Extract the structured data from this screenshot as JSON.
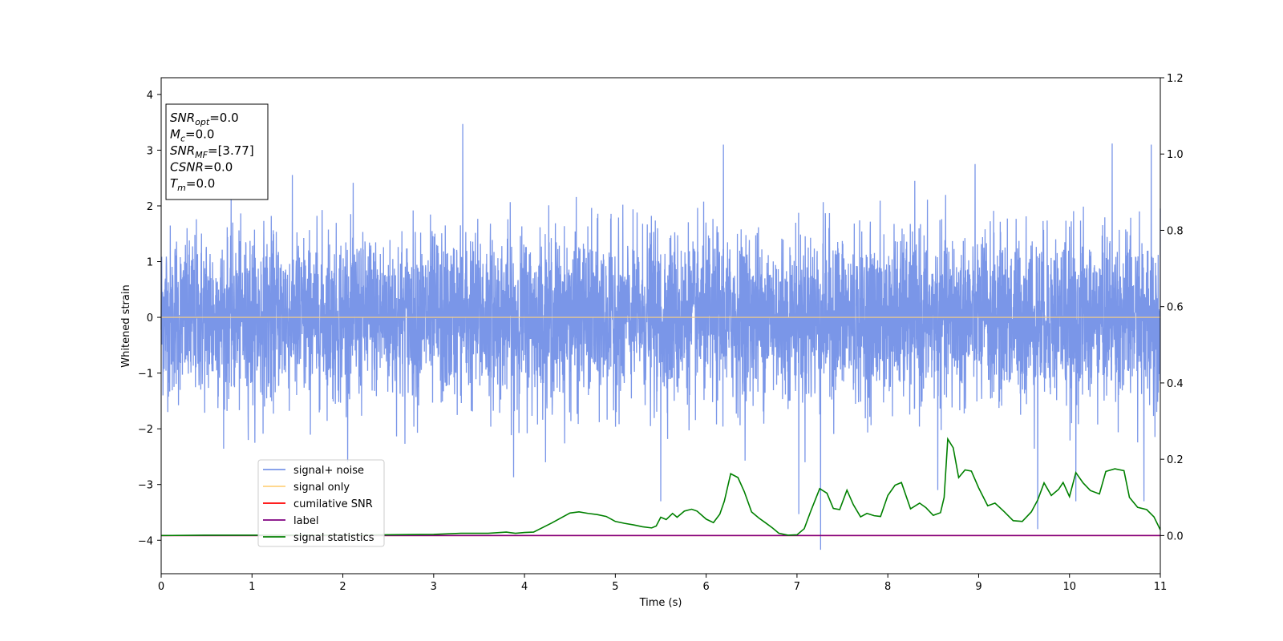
{
  "chart_data": {
    "type": "line",
    "xlabel": "Time (s)",
    "ylabel": "Whitened strain",
    "xlim": [
      0,
      11
    ],
    "ylim_left": [
      -4.6,
      4.3
    ],
    "ylim_right": [
      -0.1,
      1.2
    ],
    "xticks": [
      "0",
      "1",
      "2",
      "3",
      "4",
      "5",
      "6",
      "7",
      "8",
      "9",
      "10",
      "11"
    ],
    "yticks_left": [
      "4",
      "3",
      "2",
      "1",
      "0",
      "−1",
      "−2",
      "−3",
      "−4"
    ],
    "yticks_right": [
      "1.2",
      "1.0",
      "0.8",
      "0.6",
      "0.4",
      "0.2",
      "0.0"
    ],
    "info_box": [
      "SNR_opt=0.0",
      "M_c=0.0",
      "SNR_MF=[3.77]",
      "CSNR=0.0",
      "T_m=0.0"
    ],
    "info_box_parts": [
      {
        "base": "SNR",
        "sub": "opt",
        "rest": "=0.0"
      },
      {
        "base": "M",
        "sub": "c",
        "rest": "=0.0"
      },
      {
        "base": "SNR",
        "sub": "MF",
        "rest": "=[3.77]"
      },
      {
        "base": "CSNR",
        "sub": "",
        "rest": "=0.0"
      },
      {
        "base": "T",
        "sub": "m",
        "rest": "=0.0"
      }
    ],
    "legend_position": "lower-left",
    "legend": [
      {
        "label": "signal+ noise",
        "color": "#7a96e8"
      },
      {
        "label": "signal only",
        "color": "#ffd27f"
      },
      {
        "label": "cumilative SNR",
        "color": "#ff0000"
      },
      {
        "label": "label",
        "color": "#800080"
      },
      {
        "label": "signal statistics",
        "color": "#008000"
      }
    ],
    "series": [
      {
        "name": "signal+ noise",
        "axis": "left",
        "color": "#7a96e8",
        "kind": "noise",
        "envelope_typical": [
          -1.5,
          2.2
        ],
        "peaks": [
          {
            "x": 3.32,
            "y": 3.47
          },
          {
            "x": 6.19,
            "y": 3.1
          },
          {
            "x": 10.47,
            "y": 3.12
          },
          {
            "x": 10.9,
            "y": 3.1
          },
          {
            "x": 7.26,
            "y": -4.17
          },
          {
            "x": 9.65,
            "y": -3.8
          },
          {
            "x": 7.02,
            "y": -3.53
          },
          {
            "x": 5.5,
            "y": -3.3
          },
          {
            "x": 10.07,
            "y": -3.3
          },
          {
            "x": 10.82,
            "y": -3.3
          },
          {
            "x": 8.55,
            "y": -3.1
          },
          {
            "x": 3.88,
            "y": -2.87
          }
        ]
      },
      {
        "name": "signal only",
        "axis": "left",
        "color": "#ffd27f",
        "x": [
          0,
          11
        ],
        "y": [
          0,
          0
        ]
      },
      {
        "name": "cumilative SNR",
        "axis": "right",
        "color": "#ff0000",
        "x": [
          0,
          11
        ],
        "y": [
          0,
          0
        ]
      },
      {
        "name": "label",
        "axis": "right",
        "color": "#800080",
        "x": [
          0,
          11
        ],
        "y": [
          0,
          0
        ]
      },
      {
        "name": "signal statistics",
        "axis": "right",
        "color": "#008000",
        "x": [
          0,
          0.5,
          1.0,
          1.5,
          2.0,
          2.5,
          3.0,
          3.3,
          3.6,
          3.8,
          3.9,
          4.0,
          4.1,
          4.3,
          4.5,
          4.6,
          4.7,
          4.8,
          4.9,
          5.0,
          5.1,
          5.2,
          5.3,
          5.4,
          5.45,
          5.5,
          5.56,
          5.63,
          5.68,
          5.76,
          5.84,
          5.9,
          6.0,
          6.08,
          6.15,
          6.2,
          6.27,
          6.35,
          6.42,
          6.5,
          6.58,
          6.65,
          6.73,
          6.8,
          6.9,
          7.0,
          7.08,
          7.15,
          7.25,
          7.33,
          7.4,
          7.47,
          7.55,
          7.62,
          7.7,
          7.77,
          7.85,
          7.92,
          8.0,
          8.08,
          8.15,
          8.25,
          8.35,
          8.42,
          8.5,
          8.58,
          8.62,
          8.66,
          8.72,
          8.78,
          8.85,
          8.92,
          9.0,
          9.1,
          9.18,
          9.28,
          9.38,
          9.48,
          9.58,
          9.65,
          9.72,
          9.8,
          9.88,
          9.93,
          10.0,
          10.07,
          10.15,
          10.23,
          10.33,
          10.4,
          10.5,
          10.6,
          10.66,
          10.75,
          10.85,
          10.93,
          11.0
        ],
        "y": [
          0.0,
          0.001,
          0.001,
          0.001,
          0.001,
          0.002,
          0.003,
          0.006,
          0.006,
          0.009,
          0.006,
          0.008,
          0.009,
          0.033,
          0.059,
          0.062,
          0.058,
          0.055,
          0.05,
          0.037,
          0.032,
          0.028,
          0.023,
          0.02,
          0.025,
          0.048,
          0.042,
          0.058,
          0.048,
          0.064,
          0.069,
          0.064,
          0.043,
          0.034,
          0.056,
          0.09,
          0.162,
          0.152,
          0.115,
          0.062,
          0.046,
          0.034,
          0.02,
          0.006,
          0.001,
          0.002,
          0.018,
          0.063,
          0.123,
          0.111,
          0.071,
          0.068,
          0.119,
          0.081,
          0.049,
          0.058,
          0.052,
          0.05,
          0.105,
          0.132,
          0.139,
          0.07,
          0.085,
          0.073,
          0.053,
          0.06,
          0.1,
          0.253,
          0.23,
          0.152,
          0.172,
          0.169,
          0.125,
          0.078,
          0.085,
          0.063,
          0.039,
          0.037,
          0.062,
          0.093,
          0.138,
          0.105,
          0.121,
          0.139,
          0.102,
          0.165,
          0.138,
          0.118,
          0.109,
          0.168,
          0.175,
          0.17,
          0.1,
          0.074,
          0.068,
          0.049,
          0.015
        ]
      }
    ]
  }
}
